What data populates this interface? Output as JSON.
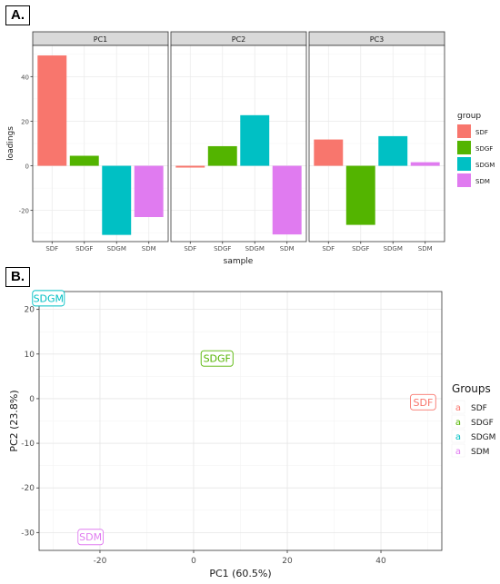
{
  "panel_labels": {
    "a": "A.",
    "b": "B."
  },
  "colors": {
    "SDF": "#F8766D",
    "SDGF": "#53B400",
    "SDGM": "#00C0C4",
    "SDM": "#E07BF0"
  },
  "chart_data": [
    {
      "type": "bar",
      "facets": [
        "PC1",
        "PC2",
        "PC3"
      ],
      "categories": [
        "SDF",
        "SDGF",
        "SDGM",
        "SDM"
      ],
      "series": [
        {
          "facet": "PC1",
          "values": [
            49.5,
            4.5,
            -31,
            -23
          ]
        },
        {
          "facet": "PC2",
          "values": [
            -0.8,
            8.8,
            22.7,
            -30.8
          ]
        },
        {
          "facet": "PC3",
          "values": [
            11.8,
            -26.5,
            13.3,
            1.6
          ]
        }
      ],
      "xlabel": "sample",
      "ylabel": "loadings",
      "ylim": [
        -34,
        54
      ],
      "yticks": [
        -20,
        0,
        20,
        40
      ],
      "grid": true,
      "legend": {
        "title": "group",
        "position": "right",
        "entries": [
          "SDF",
          "SDGF",
          "SDGM",
          "SDM"
        ]
      }
    },
    {
      "type": "scatter",
      "points": [
        {
          "label": "SDF",
          "x": 49,
          "y": -0.8
        },
        {
          "label": "SDGF",
          "x": 5,
          "y": 9
        },
        {
          "label": "SDGM",
          "x": -31,
          "y": 22.5
        },
        {
          "label": "SDM",
          "x": -22,
          "y": -31
        }
      ],
      "xlabel": "PC1 (60.5%)",
      "ylabel": "PC2 (23.8%)",
      "xlim": [
        -33,
        53
      ],
      "ylim": [
        -34,
        24
      ],
      "xticks": [
        -20,
        0,
        20,
        40
      ],
      "yticks": [
        -30,
        -20,
        -10,
        0,
        10,
        20
      ],
      "grid": true,
      "legend": {
        "title": "Groups",
        "position": "right",
        "key_glyph": "a",
        "entries": [
          "SDF",
          "SDGF",
          "SDGM",
          "SDM"
        ]
      }
    }
  ]
}
